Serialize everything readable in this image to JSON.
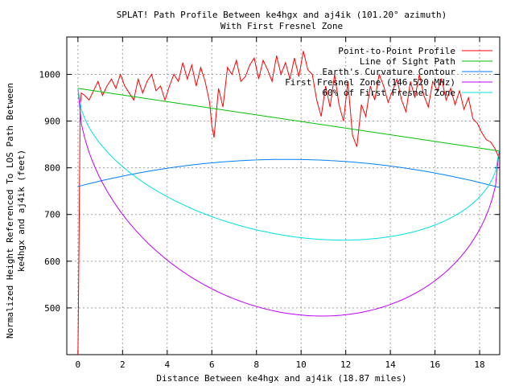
{
  "chart_data": {
    "type": "line",
    "title_line1": "SPLAT! Path Profile Between ke4hgx and aj4ik (101.20° azimuth)",
    "title_line2": "With First Fresnel Zone",
    "xlabel": "Distance Between ke4hgx and aj4ik (18.87 miles)",
    "ylabel_line1": "Normalized Height Referenced To LOS Path Between",
    "ylabel_line2": "ke4hgx and aj4ik (feet)",
    "xlim": [
      -0.5,
      18.9
    ],
    "ylim": [
      400,
      1080
    ],
    "x_ticks": [
      0,
      2,
      4,
      6,
      8,
      10,
      12,
      14,
      16,
      18
    ],
    "y_ticks": [
      500,
      600,
      700,
      800,
      900,
      1000
    ],
    "grid": true,
    "legend_position": "top-right",
    "series": [
      {
        "name": "Point-to-Point Profile",
        "color": "#ff0000",
        "x": [
          0,
          0.05,
          0.1,
          0.15,
          0.3,
          0.5,
          0.7,
          0.9,
          1.1,
          1.3,
          1.5,
          1.7,
          1.9,
          2.1,
          2.3,
          2.5,
          2.7,
          2.9,
          3.1,
          3.3,
          3.5,
          3.7,
          3.9,
          4.1,
          4.3,
          4.5,
          4.7,
          4.9,
          5.1,
          5.3,
          5.5,
          5.7,
          5.9,
          6.0,
          6.1,
          6.3,
          6.5,
          6.7,
          6.9,
          7.1,
          7.3,
          7.5,
          7.7,
          7.9,
          8.1,
          8.3,
          8.5,
          8.7,
          8.9,
          9.1,
          9.3,
          9.5,
          9.7,
          9.9,
          10.1,
          10.3,
          10.5,
          10.7,
          10.9,
          11.1,
          11.3,
          11.5,
          11.7,
          11.9,
          12.1,
          12.3,
          12.5,
          12.7,
          12.9,
          13.1,
          13.3,
          13.5,
          13.7,
          13.9,
          14.1,
          14.3,
          14.5,
          14.7,
          14.9,
          15.1,
          15.3,
          15.5,
          15.7,
          15.9,
          16.1,
          16.3,
          16.5,
          16.7,
          16.9,
          17.1,
          17.3,
          17.5,
          17.7,
          17.9,
          18.1,
          18.3,
          18.5,
          18.7,
          18.87
        ],
        "y": [
          400,
          660,
          930,
          960,
          955,
          945,
          965,
          985,
          955,
          975,
          990,
          970,
          1000,
          975,
          960,
          945,
          990,
          960,
          985,
          1000,
          965,
          975,
          945,
          975,
          1000,
          985,
          1025,
          990,
          1020,
          975,
          1015,
          985,
          940,
          890,
          865,
          970,
          930,
          1015,
          1000,
          1030,
          985,
          995,
          1020,
          1035,
          990,
          1030,
          1010,
          985,
          1040,
          1000,
          1025,
          990,
          1035,
          995,
          1050,
          1010,
          1000,
          945,
          910,
          975,
          930,
          1000,
          935,
          900,
          985,
          870,
          845,
          935,
          910,
          975,
          945,
          1000,
          975,
          940,
          965,
          990,
          945,
          920,
          985,
          950,
          1000,
          955,
          930,
          985,
          965,
          990,
          945,
          970,
          935,
          965,
          925,
          950,
          905,
          895,
          875,
          860,
          855,
          840,
          820
        ]
      },
      {
        "name": "Line of Sight Path",
        "color": "#00c000",
        "x": [
          0,
          18.87
        ],
        "y": [
          970,
          836
        ]
      },
      {
        "name": "Earth's Curvature Contour",
        "color": "#0080ff",
        "type": "parabola",
        "x_start": 0,
        "x_end": 18.87,
        "y_end_start": 760,
        "y_end_end": 758,
        "y_peak": 818
      },
      {
        "name": "First Fresnel Zone (146.520 MHz)",
        "color": "#c000ff",
        "type": "fresnel",
        "x_start": 0,
        "x_end": 18.87,
        "y_start": 970,
        "y_end": 836,
        "depth_mid": 415
      },
      {
        "name": "60% of First Fresnel Zone",
        "color": "#00e0e0",
        "type": "fresnel",
        "x_start": 0,
        "x_end": 18.87,
        "y_start": 970,
        "y_end": 836,
        "depth_mid": 249
      }
    ]
  }
}
